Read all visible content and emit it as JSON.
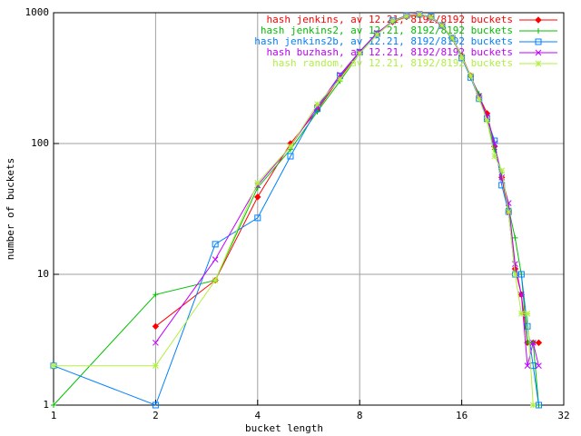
{
  "chart_data": {
    "type": "line",
    "x_label": "bucket length",
    "y_label": "number of buckets",
    "x": [
      1,
      2,
      3,
      4,
      5,
      6,
      7,
      8,
      9,
      10,
      11,
      12,
      13,
      14,
      15,
      16,
      17,
      18,
      19,
      20,
      21,
      22,
      23,
      24,
      25,
      26,
      27
    ],
    "series": [
      {
        "name": "hash jenkins, av 12.21, 8192/8192 buckets",
        "color": "#ff0000",
        "marker": "diamond",
        "values": [
          null,
          4,
          9,
          39,
          100,
          180,
          320,
          500,
          690,
          850,
          930,
          960,
          920,
          800,
          640,
          470,
          330,
          230,
          170,
          95,
          55,
          30,
          11,
          7,
          3,
          3,
          3
        ]
      },
      {
        "name": "hash jenkins2, av 12.21, 8192/8192 buckets",
        "color": "#00c000",
        "marker": "plus",
        "values": [
          1,
          7,
          9,
          46,
          90,
          175,
          300,
          490,
          680,
          860,
          940,
          970,
          930,
          790,
          630,
          470,
          320,
          240,
          150,
          90,
          60,
          32,
          19,
          10,
          3,
          3,
          1
        ]
      },
      {
        "name": "hash jenkins2b, av 12.21, 8192/8192 buckets",
        "color": "#0080ff",
        "marker": "square",
        "values": [
          2,
          1,
          17,
          27,
          80,
          185,
          330,
          500,
          690,
          870,
          950,
          970,
          930,
          800,
          640,
          450,
          320,
          220,
          155,
          105,
          48,
          30,
          10,
          10,
          4,
          2,
          1
        ]
      },
      {
        "name": "hash buzhash, av 12.21, 8192/8192 buckets",
        "color": "#c000ff",
        "marker": "cross",
        "values": [
          null,
          3,
          13,
          48,
          95,
          190,
          335,
          505,
          700,
          860,
          950,
          980,
          910,
          790,
          640,
          460,
          330,
          230,
          160,
          100,
          55,
          35,
          12,
          7,
          2,
          3,
          2
        ]
      },
      {
        "name": "hash random, av 12.21, 8192/8192 buckets",
        "color": "#b0f040",
        "marker": "star",
        "values": [
          2,
          2,
          9,
          50,
          95,
          200,
          310,
          490,
          680,
          860,
          940,
          970,
          920,
          800,
          640,
          460,
          330,
          220,
          150,
          80,
          62,
          30,
          10,
          5,
          5,
          1,
          null
        ]
      }
    ],
    "xlog": true,
    "ylog": true,
    "xlim": [
      1,
      32
    ],
    "ylim": [
      1,
      1000
    ],
    "xticks": [
      1,
      2,
      4,
      8,
      16,
      32
    ],
    "yticks": [
      1,
      10,
      100,
      1000
    ],
    "grid": true,
    "legend": "top-right"
  }
}
